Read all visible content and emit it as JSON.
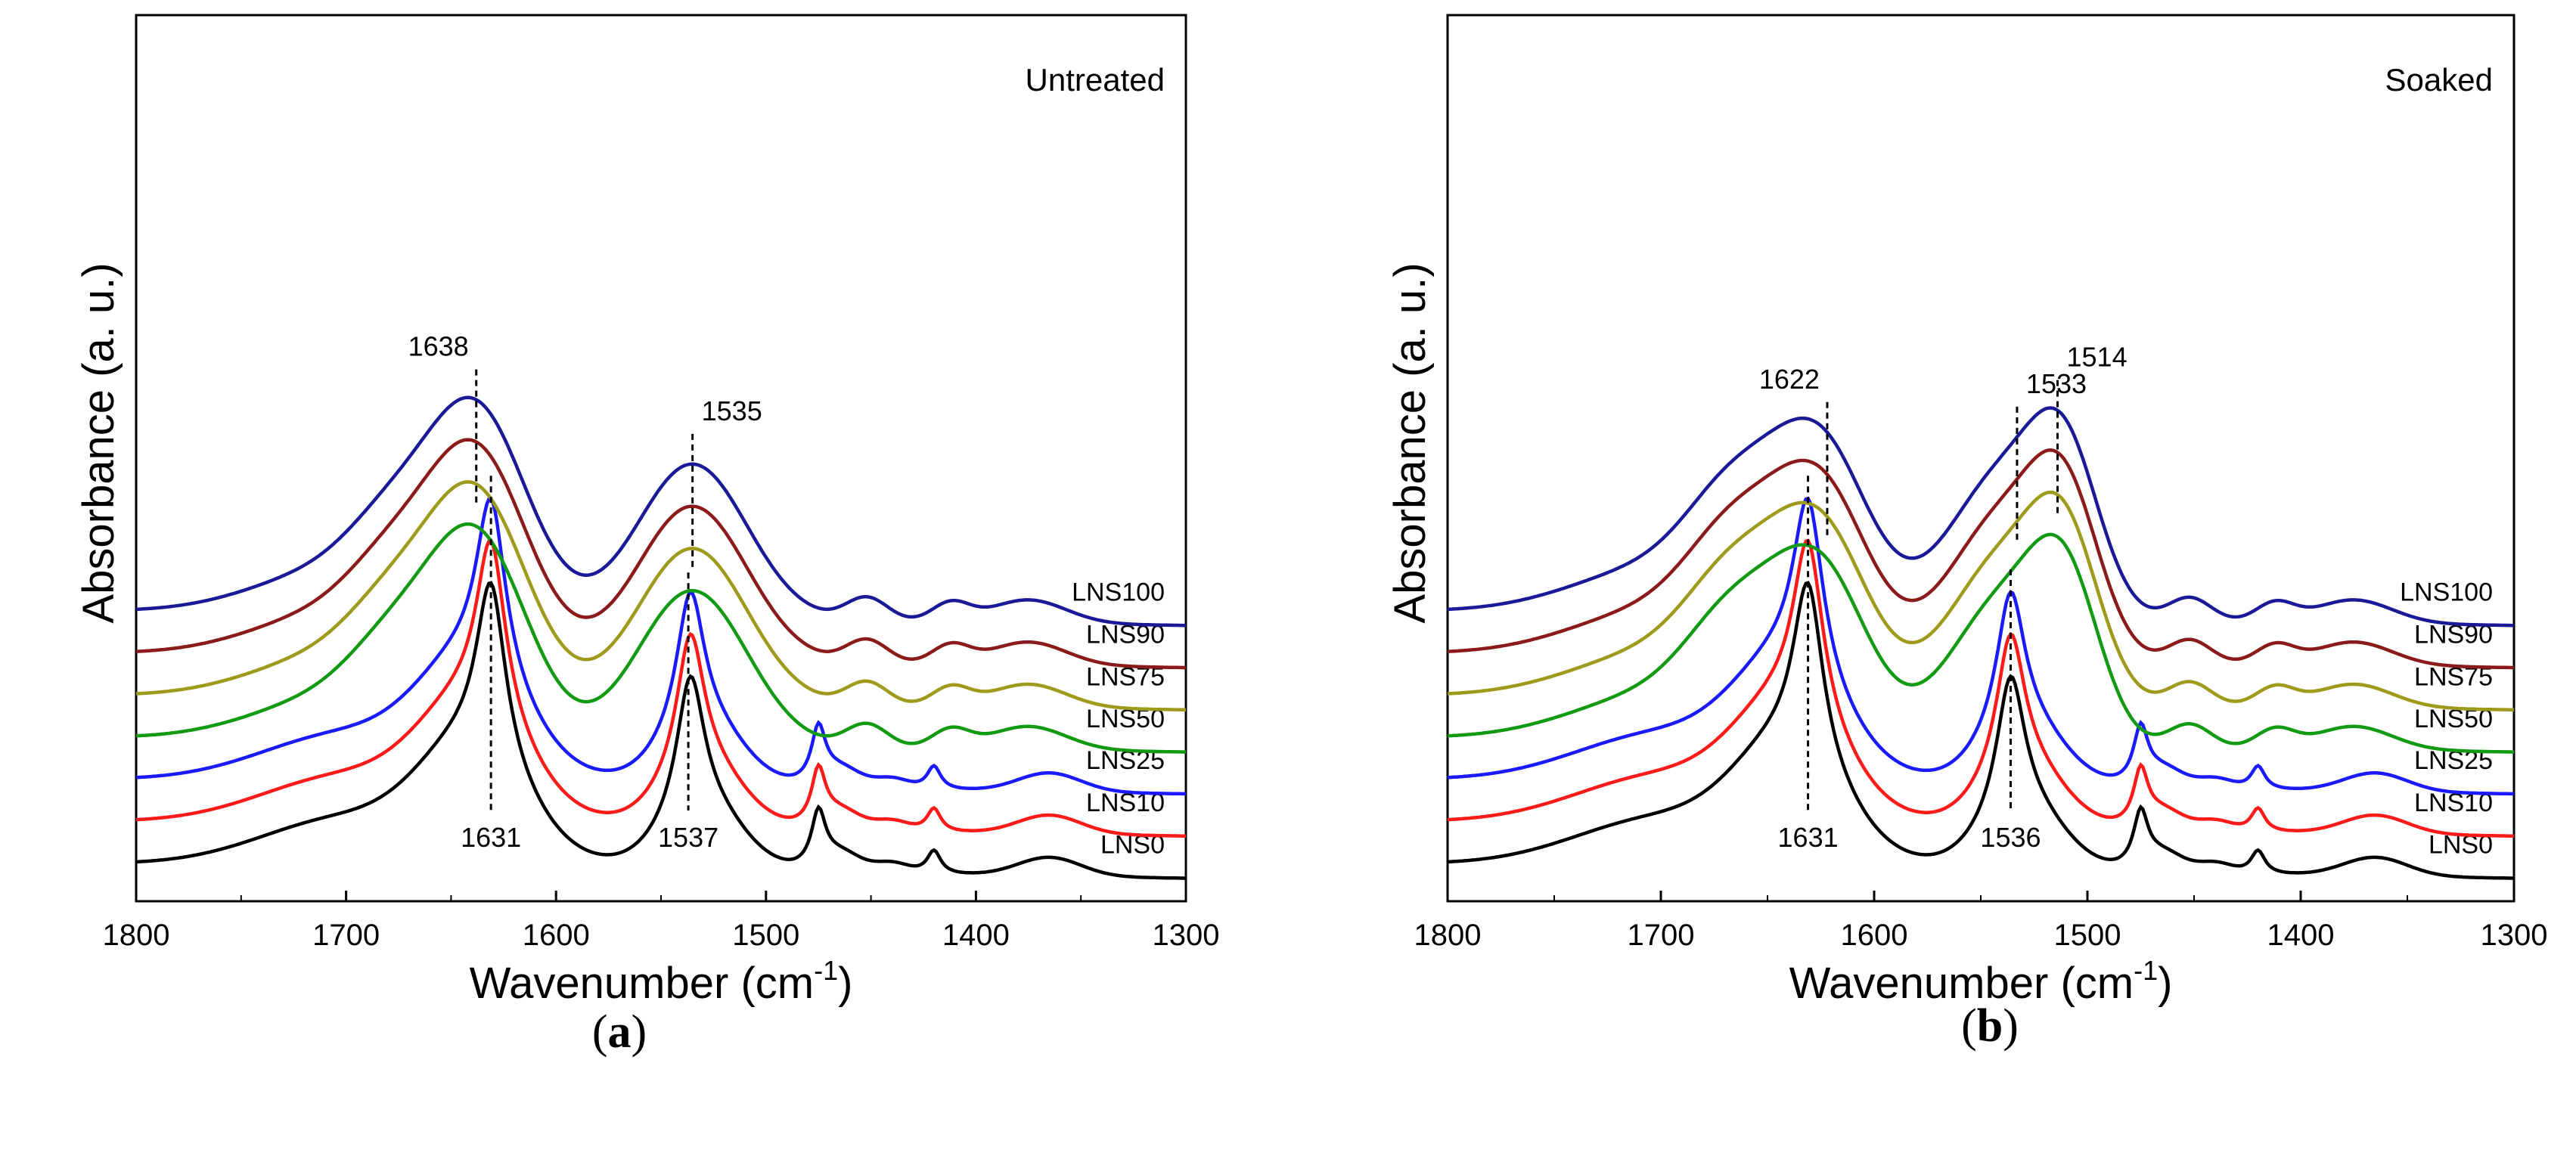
{
  "chart_data": [
    {
      "type": "line",
      "panel": "a",
      "caption": "a",
      "condition_label": "Untreated",
      "xlabel": "Wavenumber (cm",
      "xlabel_sup": "-1",
      "xlabel_close": ")",
      "ylabel": "Absorbance (a. u.)",
      "xlim": [
        1800,
        1300
      ],
      "xticks": [
        1800,
        1700,
        1600,
        1500,
        1400,
        1300
      ],
      "yticks": "none",
      "peak_labels_top": [
        1638,
        1535
      ],
      "peak_labels_bottom": [
        1631,
        1537
      ],
      "series": [
        {
          "name": "LNS0",
          "color": "#000000",
          "offset": 0.0,
          "broad_peaks": false
        },
        {
          "name": "LNS10",
          "color": "#ff1a1a",
          "offset": 0.09,
          "broad_peaks": false
        },
        {
          "name": "LNS25",
          "color": "#1a1aff",
          "offset": 0.18,
          "broad_peaks": false
        },
        {
          "name": "LNS50",
          "color": "#139a13",
          "offset": 0.27,
          "broad_peaks": true
        },
        {
          "name": "LNS75",
          "color": "#9e9a1c",
          "offset": 0.36,
          "broad_peaks": true
        },
        {
          "name": "LNS90",
          "color": "#8b1a1a",
          "offset": 0.45,
          "broad_peaks": true
        },
        {
          "name": "LNS100",
          "color": "#1a1a99",
          "offset": 0.54,
          "broad_peaks": true
        }
      ]
    },
    {
      "type": "line",
      "panel": "b",
      "caption": "b",
      "condition_label": "Soaked",
      "xlabel": "Wavenumber (cm",
      "xlabel_sup": "-1",
      "xlabel_close": ")",
      "ylabel": "Absorbance (a. u.)",
      "xlim": [
        1800,
        1300
      ],
      "xticks": [
        1800,
        1700,
        1600,
        1500,
        1400,
        1300
      ],
      "yticks": "none",
      "peak_labels_top": [
        1622,
        1533,
        1514
      ],
      "peak_labels_bottom": [
        1631,
        1536
      ],
      "series": [
        {
          "name": "LNS0",
          "color": "#000000",
          "offset": 0.0,
          "broad_peaks": false
        },
        {
          "name": "LNS10",
          "color": "#ff1a1a",
          "offset": 0.09,
          "broad_peaks": false
        },
        {
          "name": "LNS25",
          "color": "#1a1aff",
          "offset": 0.18,
          "broad_peaks": false
        },
        {
          "name": "LNS50",
          "color": "#139a13",
          "offset": 0.27,
          "broad_peaks": true
        },
        {
          "name": "LNS75",
          "color": "#9e9a1c",
          "offset": 0.36,
          "broad_peaks": true
        },
        {
          "name": "LNS90",
          "color": "#8b1a1a",
          "offset": 0.45,
          "broad_peaks": true
        },
        {
          "name": "LNS100",
          "color": "#1a1a99",
          "offset": 0.54,
          "broad_peaks": true
        }
      ]
    }
  ]
}
